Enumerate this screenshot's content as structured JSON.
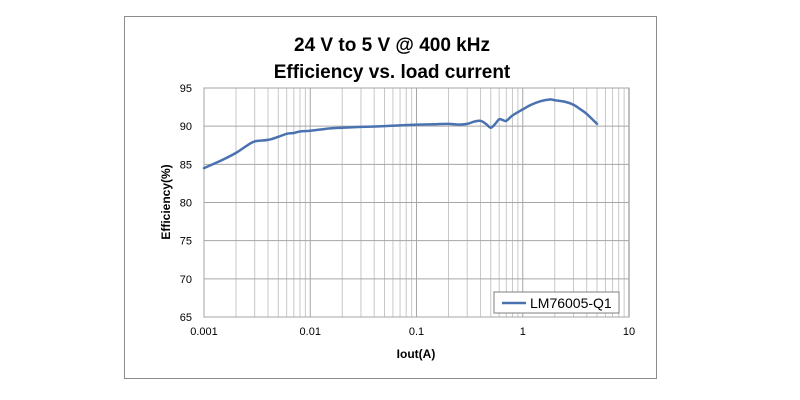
{
  "chart_data": {
    "type": "line",
    "title": "24 V to 5 V @ 400 kHz",
    "subtitle": "Efficiency vs. load current",
    "xlabel": "Iout(A)",
    "ylabel": "Efficiency(%)",
    "xscale": "log",
    "xlim": [
      0.001,
      10
    ],
    "ylim": [
      65,
      95
    ],
    "x_ticks": [
      "0.001",
      "0.01",
      "0.1",
      "1",
      "10"
    ],
    "y_ticks": [
      "65",
      "70",
      "75",
      "80",
      "85",
      "90",
      "95"
    ],
    "grid": true,
    "legend_position": "bottom-right",
    "series": [
      {
        "name": "LM76005-Q1",
        "color": "#4a72b0",
        "x": [
          0.001,
          0.0015,
          0.002,
          0.0025,
          0.003,
          0.004,
          0.005,
          0.006,
          0.007,
          0.008,
          0.01,
          0.015,
          0.02,
          0.03,
          0.05,
          0.07,
          0.1,
          0.15,
          0.2,
          0.25,
          0.3,
          0.35,
          0.4,
          0.45,
          0.5,
          0.55,
          0.6,
          0.65,
          0.7,
          0.8,
          1.0,
          1.2,
          1.5,
          1.8,
          2.0,
          2.5,
          3.0,
          3.5,
          4.0,
          5.0
        ],
        "y": [
          84.5,
          85.6,
          86.5,
          87.4,
          88.0,
          88.2,
          88.6,
          89.0,
          89.1,
          89.3,
          89.4,
          89.7,
          89.8,
          89.9,
          90.0,
          90.1,
          90.2,
          90.25,
          90.3,
          90.2,
          90.3,
          90.6,
          90.7,
          90.3,
          89.8,
          90.3,
          90.9,
          90.8,
          90.7,
          91.4,
          92.2,
          92.8,
          93.3,
          93.5,
          93.4,
          93.2,
          92.8,
          92.2,
          91.6,
          90.3
        ]
      }
    ]
  }
}
